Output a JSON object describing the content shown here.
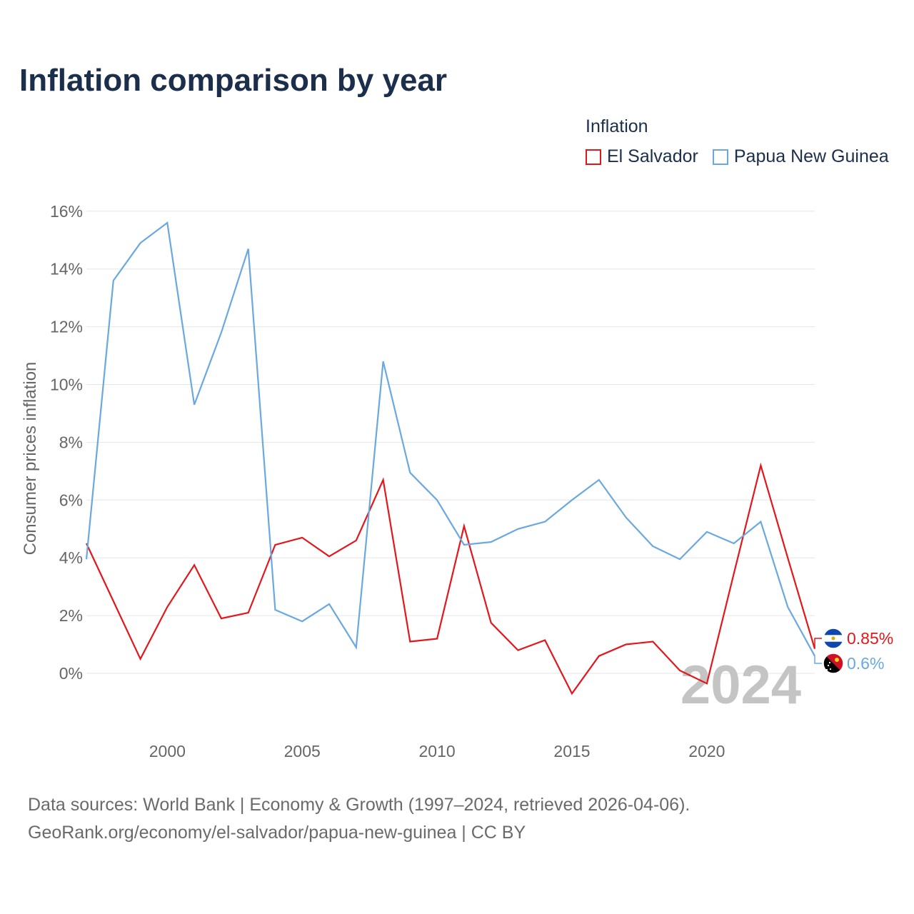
{
  "title": "Inflation comparison by year",
  "legend": {
    "title": "Inflation",
    "items": [
      {
        "label": "El Salvador",
        "color": "#e3171b"
      },
      {
        "label": "Papua New Guinea",
        "color": "#6aa8e0"
      }
    ]
  },
  "year_watermark": "2024",
  "footer": {
    "line1": "Data sources: World Bank | Economy & Growth (1997–2024, retrieved 2026-04-06).",
    "line2": "GeoRank.org/economy/el-salvador/papua-new-guinea | CC BY"
  },
  "end_labels": {
    "el_salvador": "0.85%",
    "papua_new_guinea": "0.6%"
  },
  "chart_data": {
    "type": "line",
    "title": "Inflation comparison by year",
    "xlabel": "",
    "ylabel": "Consumer prices inflation",
    "xlim": [
      1997,
      2024
    ],
    "ylim": [
      -2,
      16
    ],
    "yticks": [
      0,
      2,
      4,
      6,
      8,
      10,
      12,
      14,
      16
    ],
    "ytick_labels": [
      "0%",
      "2%",
      "4%",
      "6%",
      "8%",
      "10%",
      "12%",
      "14%",
      "16%"
    ],
    "xticks": [
      2000,
      2005,
      2010,
      2015,
      2020
    ],
    "xtick_labels": [
      "2000",
      "2005",
      "2010",
      "2015",
      "2020"
    ],
    "grid": true,
    "legend_position": "top-right",
    "x": [
      1997,
      1998,
      1999,
      2000,
      2001,
      2002,
      2003,
      2004,
      2005,
      2006,
      2007,
      2008,
      2009,
      2010,
      2011,
      2012,
      2013,
      2014,
      2015,
      2016,
      2017,
      2018,
      2019,
      2020,
      2021,
      2022,
      2023,
      2024
    ],
    "series": [
      {
        "name": "El Salvador",
        "color": "#e3171b",
        "values": [
          4.5,
          2.5,
          0.5,
          2.3,
          3.75,
          1.9,
          2.1,
          4.45,
          4.7,
          4.05,
          4.6,
          6.7,
          1.1,
          1.2,
          5.1,
          1.75,
          0.8,
          1.15,
          -0.7,
          0.6,
          1.0,
          1.1,
          0.1,
          -0.35,
          3.45,
          7.2,
          4.0,
          0.85
        ]
      },
      {
        "name": "Papua New Guinea",
        "color": "#6aa8e0",
        "values": [
          3.95,
          13.6,
          14.9,
          15.6,
          9.3,
          11.8,
          14.7,
          2.2,
          1.8,
          2.4,
          0.9,
          10.8,
          6.95,
          6.0,
          4.45,
          4.55,
          5.0,
          5.25,
          6.0,
          6.7,
          5.4,
          4.4,
          3.95,
          4.9,
          4.5,
          5.25,
          2.3,
          0.6
        ]
      }
    ]
  }
}
